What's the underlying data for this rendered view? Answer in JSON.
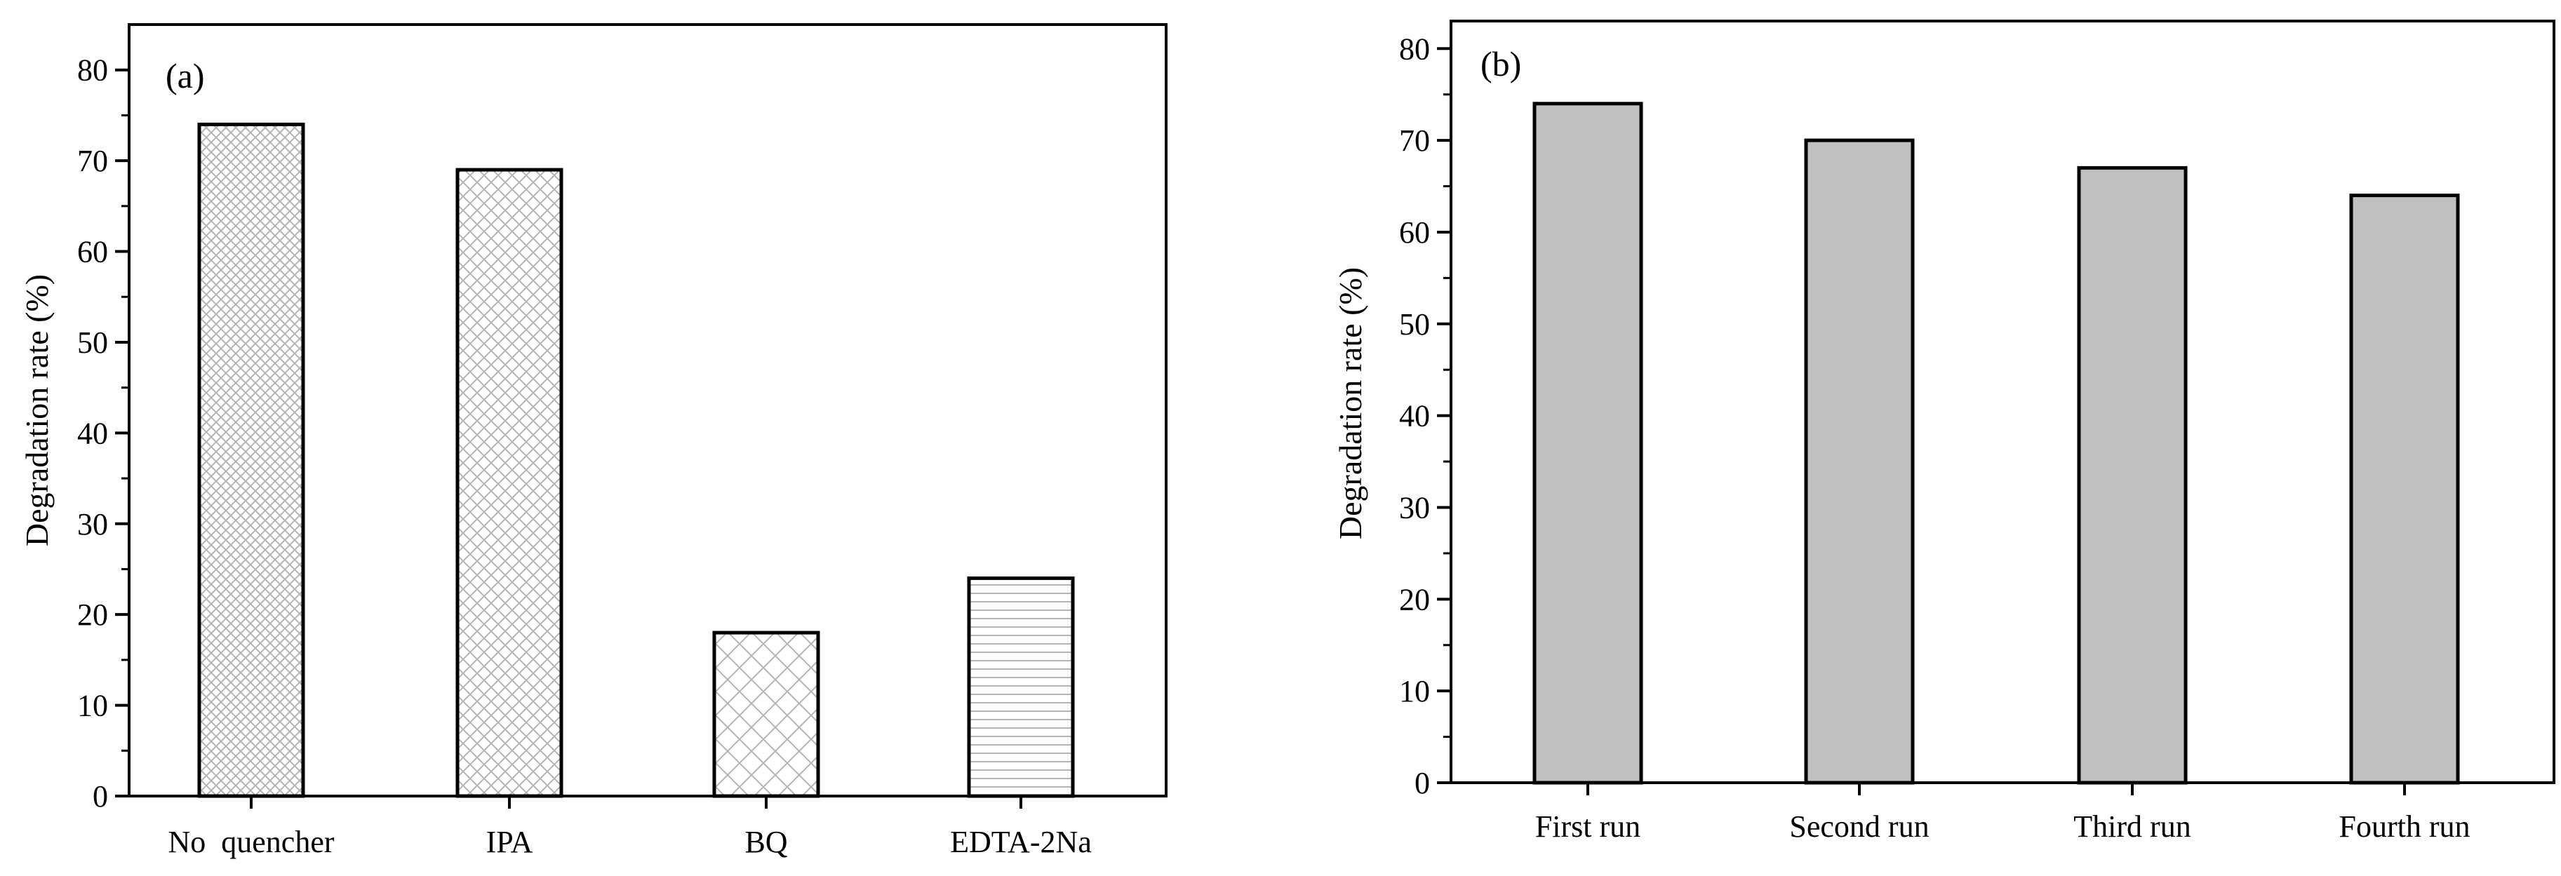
{
  "chart_data": [
    {
      "type": "bar",
      "panel_label": "(a)",
      "categories": [
        "No  quencher",
        "IPA",
        "BQ",
        "EDTA-2Na"
      ],
      "values": [
        74,
        69,
        18,
        24
      ],
      "patterns": [
        "fine-crosshatch",
        "crosshatch",
        "wide-crosshatch",
        "horizontal-lines"
      ],
      "xlabel": "",
      "ylabel": "Degradation rate (%)",
      "ylim": [
        0,
        85
      ],
      "yticks": [
        0,
        10,
        20,
        30,
        40,
        50,
        60,
        70,
        80
      ],
      "grid": false,
      "bar_fill": "#ffffff",
      "pattern_color": "#b4b4b4"
    },
    {
      "type": "bar",
      "panel_label": "(b)",
      "categories": [
        "First run",
        "Second run",
        "Third run",
        "Fourth run"
      ],
      "values": [
        74,
        70,
        67,
        64
      ],
      "xlabel": "",
      "ylabel": "Degradation rate (%)",
      "ylim": [
        0,
        83
      ],
      "yticks": [
        0,
        10,
        20,
        30,
        40,
        50,
        60,
        70,
        80
      ],
      "grid": false,
      "bar_fill": "#c0c0c0"
    }
  ]
}
